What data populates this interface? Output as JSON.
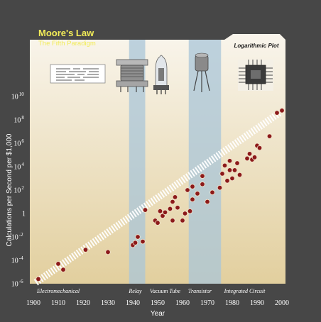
{
  "header": {
    "title": "Moore's Law",
    "subtitle": "The Fifth Paradigm",
    "scale_badge": "Logarithmic Plot"
  },
  "colors": {
    "background": "#474747",
    "plot_top": "#f9f5ec",
    "plot_bottom": "#e2cf9e",
    "paradigm_band": "#a9c6d8",
    "point": "#8c1a1a",
    "point_edge": "#f3e3cc",
    "trend_band": "#ffffff",
    "title": "#f2ec58"
  },
  "icons": [
    "punch-card-icon",
    "relay-icon",
    "vacuum-tube-icon",
    "transistor-icon",
    "integrated-circuit-icon"
  ],
  "chart_data": {
    "type": "scatter",
    "title": "Moore's Law",
    "subtitle": "The Fifth Paradigm",
    "xlabel": "Year",
    "ylabel": "Calculations per Second per $1,000",
    "xlim": [
      1900,
      2000
    ],
    "ylim": [
      -6,
      10
    ],
    "y_scale": "log10",
    "grid": false,
    "x_ticks": [
      "1900",
      "1910",
      "1920",
      "1930",
      "1940",
      "1950",
      "1960",
      "1970",
      "1980",
      "1990",
      "2000"
    ],
    "y_ticks": [
      {
        "base": "10",
        "exp": "10",
        "value": 10
      },
      {
        "base": "10",
        "exp": "8",
        "value": 8
      },
      {
        "base": "10",
        "exp": "6",
        "value": 6
      },
      {
        "base": "10",
        "exp": "4",
        "value": 4
      },
      {
        "base": "10",
        "exp": "2",
        "value": 2
      },
      {
        "base": "1",
        "exp": "",
        "value": 0
      },
      {
        "base": "10",
        "exp": "-2",
        "value": -2
      },
      {
        "base": "10",
        "exp": "-4",
        "value": -4
      },
      {
        "base": "10",
        "exp": "-6",
        "value": -6
      }
    ],
    "trend": {
      "from": [
        1901,
        -5.9
      ],
      "to": [
        1999,
        8.6
      ]
    },
    "paradigm_bands": [
      {
        "name": "Relay",
        "x0": 1938.5,
        "x1": 1945
      },
      {
        "name": "Transistor",
        "x0": 1962.5,
        "x1": 1975.5
      }
    ],
    "eras": [
      {
        "label": "Electromechanical",
        "x": 1910
      },
      {
        "label": "Relay",
        "x": 1941
      },
      {
        "label": "Vacuum Tube",
        "x": 1953
      },
      {
        "label": "Transistor",
        "x": 1967
      },
      {
        "label": "Integrated Circuit",
        "x": 1985
      }
    ],
    "points": [
      {
        "x": 1902,
        "y": -5.6
      },
      {
        "x": 1910,
        "y": -4.3
      },
      {
        "x": 1912,
        "y": -4.8
      },
      {
        "x": 1921,
        "y": -3.1
      },
      {
        "x": 1930,
        "y": -3.3
      },
      {
        "x": 1940,
        "y": -2.7
      },
      {
        "x": 1941,
        "y": -2.5
      },
      {
        "x": 1942,
        "y": -2.0
      },
      {
        "x": 1944,
        "y": -2.4
      },
      {
        "x": 1945,
        "y": 0.3
      },
      {
        "x": 1949,
        "y": -0.6
      },
      {
        "x": 1950,
        "y": -0.8
      },
      {
        "x": 1951,
        "y": 0.2
      },
      {
        "x": 1952,
        "y": -0.2
      },
      {
        "x": 1953,
        "y": 0.1
      },
      {
        "x": 1955,
        "y": 0.4
      },
      {
        "x": 1956,
        "y": -0.6
      },
      {
        "x": 1956,
        "y": 1.0
      },
      {
        "x": 1957,
        "y": 1.4
      },
      {
        "x": 1958,
        "y": 0.5
      },
      {
        "x": 1960,
        "y": -0.6
      },
      {
        "x": 1961,
        "y": 0.0
      },
      {
        "x": 1962,
        "y": 2.0
      },
      {
        "x": 1963,
        "y": 0.2
      },
      {
        "x": 1964,
        "y": 2.3
      },
      {
        "x": 1964,
        "y": 1.2
      },
      {
        "x": 1966,
        "y": 1.7
      },
      {
        "x": 1968,
        "y": 2.5
      },
      {
        "x": 1968,
        "y": 3.2
      },
      {
        "x": 1970,
        "y": 1.0
      },
      {
        "x": 1972,
        "y": 1.8
      },
      {
        "x": 1975,
        "y": 2.2
      },
      {
        "x": 1976,
        "y": 3.4
      },
      {
        "x": 1977,
        "y": 4.1
      },
      {
        "x": 1978,
        "y": 2.8
      },
      {
        "x": 1979,
        "y": 3.7
      },
      {
        "x": 1979,
        "y": 4.5
      },
      {
        "x": 1980,
        "y": 3.0
      },
      {
        "x": 1981,
        "y": 3.7
      },
      {
        "x": 1982,
        "y": 4.3
      },
      {
        "x": 1983,
        "y": 3.3
      },
      {
        "x": 1986,
        "y": 4.7
      },
      {
        "x": 1987,
        "y": 5.1
      },
      {
        "x": 1988,
        "y": 4.6
      },
      {
        "x": 1989,
        "y": 4.8
      },
      {
        "x": 1990,
        "y": 5.8
      },
      {
        "x": 1991,
        "y": 5.6
      },
      {
        "x": 1995,
        "y": 6.6
      },
      {
        "x": 1998,
        "y": 8.6
      },
      {
        "x": 2000,
        "y": 8.8
      }
    ]
  }
}
